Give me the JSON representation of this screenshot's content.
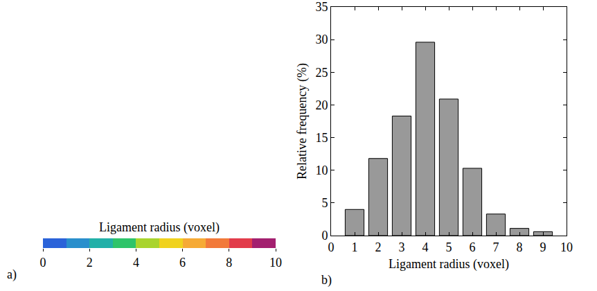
{
  "chart_data": [
    {
      "type": "colorbar",
      "panel": "a)",
      "title": "Ligament radius (voxel)",
      "xlim": [
        0,
        10
      ],
      "xticks": [
        0,
        2,
        4,
        6,
        8,
        10
      ],
      "colors": [
        "#2b63d9",
        "#2a8fcc",
        "#22b0a8",
        "#2fc46a",
        "#a9d42e",
        "#f0d21e",
        "#f6aa35",
        "#f27a3a",
        "#e23c4b",
        "#a3206f"
      ]
    },
    {
      "type": "bar",
      "panel": "b)",
      "x": [
        1,
        2,
        3,
        4,
        5,
        6,
        7,
        8,
        9
      ],
      "values": [
        4.0,
        11.8,
        18.3,
        29.6,
        20.9,
        10.3,
        3.3,
        1.1,
        0.6
      ],
      "color": "#999999",
      "xlabel": "Ligament radius (voxel)",
      "ylabel": "Relative frequency (%)",
      "xlim": [
        0,
        10
      ],
      "xticks": [
        0,
        1,
        2,
        3,
        4,
        5,
        6,
        7,
        8,
        9,
        10
      ],
      "ylim": [
        0,
        35
      ],
      "yticks": [
        0,
        5,
        10,
        15,
        20,
        25,
        30,
        35
      ],
      "grid": false
    }
  ]
}
